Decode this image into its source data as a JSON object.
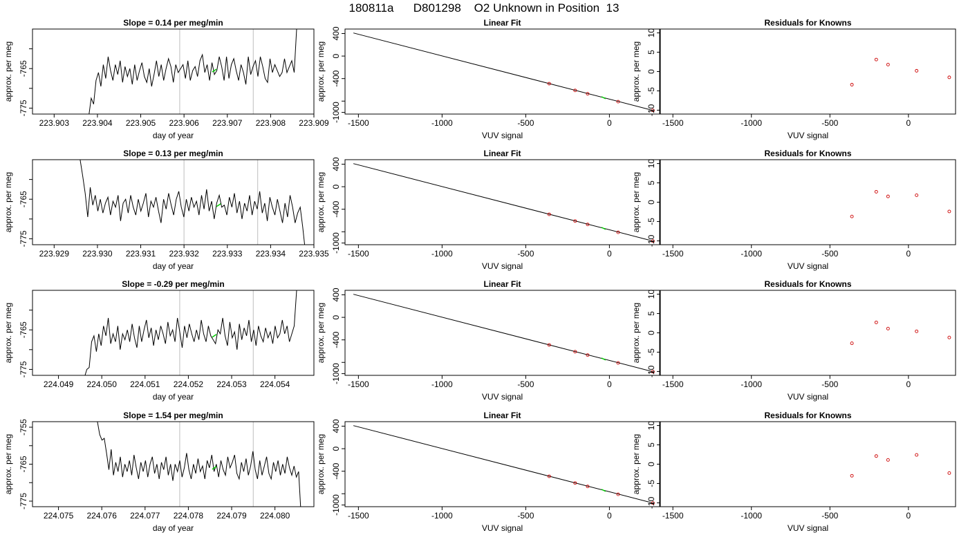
{
  "title": "180811a      D801298    O2 Unknown in Position  13",
  "colors": {
    "trace": "#000000",
    "marker_unknown": "#00cc00",
    "known_points": "#cc0000",
    "guide_lines": "#cccccc",
    "fit_line": "#000000"
  },
  "chart_data": [
    {
      "type": "line",
      "panel": "time-series-row-1",
      "title": "Slope =  0.14  per meg/min",
      "xlabel": "day of year",
      "ylabel": "approx. per meg",
      "xlim": [
        223.9025,
        223.909
      ],
      "ylim": [
        -776.5,
        -755.0
      ],
      "xticks": [
        223.903,
        223.904,
        223.905,
        223.906,
        223.907,
        223.908,
        223.909
      ],
      "xtick_labels": [
        "223.903",
        "223.904",
        "223.905",
        "223.906",
        "223.907",
        "223.908",
        "223.909"
      ],
      "yticks": [
        -775,
        -770,
        -765,
        -760
      ],
      "ytick_labels": [
        "-775",
        "",
        "-765",
        ""
      ],
      "vlines": [
        223.9059,
        223.9076
      ],
      "unknown_marker": {
        "x": 223.9067,
        "y": -765.5
      },
      "trace_x_range": [
        223.9038,
        223.9086
      ],
      "trace": [
        -777.0,
        -772.5,
        -774.0,
        -768.0,
        -766.0,
        -769.5,
        -764.0,
        -767.5,
        -762.0,
        -765.5,
        -768.0,
        -764.0,
        -766.5,
        -763.0,
        -768.5,
        -764.5,
        -767.0,
        -765.0,
        -769.0,
        -764.0,
        -768.0,
        -765.5,
        -763.5,
        -767.0,
        -768.5,
        -765.0,
        -769.5,
        -766.5,
        -763.0,
        -767.0,
        -764.0,
        -768.0,
        -765.0,
        -762.5,
        -764.5,
        -768.5,
        -764.0,
        -766.0,
        -765.0,
        -764.0,
        -767.5,
        -763.0,
        -768.0,
        -765.5,
        -764.5,
        -767.0,
        -763.0,
        -761.5,
        -766.0,
        -764.0,
        -768.0,
        -763.5,
        -766.5,
        -765.5,
        -762.0,
        -764.5,
        -768.0,
        -762.0,
        -767.5,
        -764.0,
        -762.5,
        -765.5,
        -768.0,
        -764.0,
        -766.0,
        -769.0,
        -762.0,
        -766.5,
        -764.5,
        -763.0,
        -767.0,
        -762.0,
        -764.5,
        -767.5,
        -768.5,
        -762.5,
        -766.0,
        -764.0,
        -765.5,
        -767.0,
        -766.0,
        -762.5,
        -766.0,
        -764.5,
        -763.0,
        -766.0,
        -755.0
      ]
    },
    {
      "type": "scatter",
      "panel": "linear-fit-row-1",
      "title": "Linear Fit",
      "xlabel": "VUV signal",
      "ylabel": "approx. per meg",
      "xlim": [
        -1580,
        300
      ],
      "ylim": [
        -1030,
        480
      ],
      "xticks": [
        -1500,
        -1000,
        -500,
        0
      ],
      "xtick_labels": [
        "-1500",
        "-1000",
        "-500",
        "0"
      ],
      "yticks": [
        -1000,
        -800,
        -400,
        0,
        400
      ],
      "ytick_labels": [
        "-1000",
        "",
        "-400",
        "0",
        "400"
      ],
      "fit_line": {
        "x": [
          -1530,
          260
        ],
        "y": [
          410,
          -965
        ]
      },
      "knowns": {
        "x": [
          -360,
          -205,
          -130,
          52,
          260
        ],
        "y": [
          -490,
          -610,
          -670,
          -810,
          -965
        ]
      },
      "unknown": {
        "x": -35,
        "y": -740
      }
    },
    {
      "type": "scatter",
      "panel": "residuals-row-1",
      "title": "Residuals for Knowns",
      "xlabel": "VUV signal",
      "ylabel": "approx. per meg",
      "xlim": [
        -1580,
        300
      ],
      "ylim": [
        -11,
        11
      ],
      "xticks": [
        -1500,
        -1000,
        -500,
        0
      ],
      "xtick_labels": [
        "-1500",
        "-1000",
        "-500",
        "0"
      ],
      "yticks": [
        -10,
        -5,
        0,
        5,
        10
      ],
      "ytick_labels": [
        "-10",
        "-5",
        "0",
        "5",
        "10"
      ],
      "knowns": {
        "x": [
          -360,
          -205,
          -130,
          52,
          260
        ],
        "y": [
          -3.4,
          3.1,
          1.8,
          0.2,
          -1.5
        ]
      }
    },
    {
      "type": "line",
      "panel": "time-series-row-2",
      "title": "Slope =  0.13  per meg/min",
      "xlabel": "day of year",
      "ylabel": "approx. per meg",
      "xlim": [
        223.9285,
        223.935
      ],
      "ylim": [
        -776.5,
        -755.0
      ],
      "xticks": [
        223.929,
        223.93,
        223.931,
        223.932,
        223.933,
        223.934,
        223.935
      ],
      "xtick_labels": [
        "223.929",
        "223.930",
        "223.931",
        "223.932",
        "223.933",
        "223.934",
        "223.935"
      ],
      "yticks": [
        -775,
        -770,
        -765,
        -760
      ],
      "ytick_labels": [
        "-775",
        "",
        "-765",
        ""
      ],
      "vlines": [
        223.932,
        223.9337
      ],
      "unknown_marker": {
        "x": 223.9328,
        "y": -766.5
      },
      "trace_x_range": [
        223.9296,
        223.9348
      ],
      "trace": [
        -755.0,
        -759.0,
        -763.5,
        -769.5,
        -762.0,
        -766.5,
        -764.0,
        -768.0,
        -765.0,
        -768.5,
        -766.0,
        -764.5,
        -769.0,
        -765.5,
        -767.0,
        -764.0,
        -770.5,
        -766.0,
        -765.0,
        -768.5,
        -764.0,
        -767.0,
        -769.0,
        -765.0,
        -768.0,
        -766.0,
        -763.5,
        -769.5,
        -765.5,
        -767.0,
        -764.5,
        -768.0,
        -771.0,
        -765.0,
        -767.5,
        -763.5,
        -766.5,
        -769.0,
        -765.0,
        -763.0,
        -767.0,
        -769.5,
        -765.0,
        -768.0,
        -764.5,
        -767.0,
        -765.5,
        -769.0,
        -764.0,
        -767.5,
        -762.5,
        -768.0,
        -765.5,
        -770.0,
        -766.0,
        -764.0,
        -767.0,
        -766.5,
        -769.0,
        -764.5,
        -767.0,
        -763.5,
        -768.5,
        -765.5,
        -770.0,
        -766.0,
        -768.0,
        -764.0,
        -769.0,
        -765.5,
        -767.5,
        -763.0,
        -768.5,
        -766.0,
        -770.5,
        -764.5,
        -767.0,
        -769.0,
        -765.0,
        -768.0,
        -771.0,
        -766.0,
        -769.5,
        -764.0,
        -767.0,
        -771.0,
        -768.5,
        -767.0,
        -772.0,
        -778.0
      ]
    },
    {
      "type": "scatter",
      "panel": "linear-fit-row-2",
      "title": "Linear Fit",
      "xlabel": "VUV signal",
      "ylabel": "approx. per meg",
      "xlim": [
        -1580,
        300
      ],
      "ylim": [
        -1030,
        480
      ],
      "xticks": [
        -1500,
        -1000,
        -500,
        0
      ],
      "xtick_labels": [
        "-1500",
        "-1000",
        "-500",
        "0"
      ],
      "yticks": [
        -1000,
        -800,
        -400,
        0,
        400
      ],
      "ytick_labels": [
        "-1000",
        "",
        "-400",
        "0",
        "400"
      ],
      "fit_line": {
        "x": [
          -1530,
          260
        ],
        "y": [
          410,
          -965
        ]
      },
      "knowns": {
        "x": [
          -360,
          -205,
          -130,
          52,
          260
        ],
        "y": [
          -490,
          -610,
          -670,
          -810,
          -965
        ]
      },
      "unknown": {
        "x": -35,
        "y": -740
      }
    },
    {
      "type": "scatter",
      "panel": "residuals-row-2",
      "title": "Residuals for Knowns",
      "xlabel": "VUV signal",
      "ylabel": "approx. per meg",
      "xlim": [
        -1580,
        300
      ],
      "ylim": [
        -11,
        11
      ],
      "xticks": [
        -1500,
        -1000,
        -500,
        0
      ],
      "xtick_labels": [
        "-1500",
        "-1000",
        "-500",
        "0"
      ],
      "yticks": [
        -10,
        -5,
        0,
        5,
        10
      ],
      "ytick_labels": [
        "-10",
        "-5",
        "0",
        "5",
        "10"
      ],
      "knowns": {
        "x": [
          -360,
          -205,
          -130,
          52,
          260
        ],
        "y": [
          -3.7,
          2.7,
          1.5,
          1.8,
          -2.4
        ]
      }
    },
    {
      "type": "line",
      "panel": "time-series-row-3",
      "title": "Slope =  -0.29  per meg/min",
      "xlabel": "day of year",
      "ylabel": "approx. per meg",
      "xlim": [
        224.0484,
        224.0549
      ],
      "ylim": [
        -776.5,
        -755.0
      ],
      "xticks": [
        224.049,
        224.05,
        224.051,
        224.052,
        224.053,
        224.054
      ],
      "xtick_labels": [
        "224.049",
        "224.050",
        "224.051",
        "224.052",
        "224.053",
        "224.054"
      ],
      "yticks": [
        -775,
        -770,
        -765,
        -760
      ],
      "ytick_labels": [
        "-775",
        "",
        "-765",
        ""
      ],
      "vlines": [
        224.0518,
        224.0535
      ],
      "unknown_marker": {
        "x": 224.0526,
        "y": -766.5
      },
      "trace_x_range": [
        224.0496,
        224.0545
      ],
      "trace": [
        -777.0,
        -775.0,
        -774.5,
        -768.0,
        -766.5,
        -770.5,
        -766.0,
        -769.0,
        -764.0,
        -766.5,
        -762.0,
        -768.5,
        -766.0,
        -768.0,
        -764.0,
        -770.0,
        -766.0,
        -767.5,
        -765.0,
        -768.0,
        -763.5,
        -767.0,
        -769.5,
        -764.0,
        -768.0,
        -765.0,
        -762.5,
        -767.0,
        -764.5,
        -769.0,
        -765.0,
        -767.5,
        -764.0,
        -766.0,
        -768.5,
        -763.0,
        -766.5,
        -765.0,
        -768.0,
        -762.0,
        -765.5,
        -769.5,
        -764.0,
        -767.0,
        -763.5,
        -766.0,
        -768.0,
        -765.0,
        -767.5,
        -762.5,
        -766.0,
        -768.0,
        -764.0,
        -766.5,
        -767.5,
        -768.5,
        -765.0,
        -766.0,
        -762.0,
        -766.5,
        -769.0,
        -763.0,
        -767.0,
        -765.5,
        -770.0,
        -763.5,
        -767.5,
        -764.5,
        -766.5,
        -762.5,
        -768.0,
        -765.0,
        -769.0,
        -764.0,
        -766.5,
        -768.0,
        -764.5,
        -767.0,
        -765.5,
        -768.5,
        -764.0,
        -767.0,
        -766.0,
        -762.5,
        -766.0,
        -764.0,
        -768.0,
        -766.0,
        -764.0,
        -755.0
      ]
    },
    {
      "type": "scatter",
      "panel": "linear-fit-row-3",
      "title": "Linear Fit",
      "xlabel": "VUV signal",
      "ylabel": "approx. per meg",
      "xlim": [
        -1580,
        300
      ],
      "ylim": [
        -1030,
        480
      ],
      "xticks": [
        -1500,
        -1000,
        -500,
        0
      ],
      "xtick_labels": [
        "-1500",
        "-1000",
        "-500",
        "0"
      ],
      "yticks": [
        -1000,
        -800,
        -400,
        0,
        400
      ],
      "ytick_labels": [
        "-1000",
        "",
        "-400",
        "0",
        "400"
      ],
      "fit_line": {
        "x": [
          -1530,
          260
        ],
        "y": [
          410,
          -965
        ]
      },
      "knowns": {
        "x": [
          -360,
          -205,
          -130,
          52,
          260
        ],
        "y": [
          -490,
          -610,
          -670,
          -810,
          -965
        ]
      },
      "unknown": {
        "x": -35,
        "y": -740
      }
    },
    {
      "type": "scatter",
      "panel": "residuals-row-3",
      "title": "Residuals for Knowns",
      "xlabel": "VUV signal",
      "ylabel": "approx. per meg",
      "xlim": [
        -1580,
        300
      ],
      "ylim": [
        -11,
        11
      ],
      "xticks": [
        -1500,
        -1000,
        -500,
        0
      ],
      "xtick_labels": [
        "-1500",
        "-1000",
        "-500",
        "0"
      ],
      "yticks": [
        -10,
        -5,
        0,
        5,
        10
      ],
      "ytick_labels": [
        "-10",
        "-5",
        "0",
        "5",
        "10"
      ],
      "knowns": {
        "x": [
          -360,
          -205,
          -130,
          52,
          260
        ],
        "y": [
          -2.7,
          2.7,
          1.1,
          0.4,
          -1.2
        ]
      }
    },
    {
      "type": "line",
      "panel": "time-series-row-4",
      "title": "Slope =  1.54  per meg/min",
      "xlabel": "day of year",
      "ylabel": "approx. per meg",
      "xlim": [
        224.0744,
        224.0809
      ],
      "ylim": [
        -776.5,
        -753.5
      ],
      "xticks": [
        224.075,
        224.076,
        224.077,
        224.078,
        224.079,
        224.08
      ],
      "xtick_labels": [
        "224.075",
        "224.076",
        "224.077",
        "224.078",
        "224.079",
        "224.080"
      ],
      "yticks": [
        -775,
        -770,
        -765,
        -760,
        -755
      ],
      "ytick_labels": [
        "-775",
        "",
        "-765",
        "",
        "-755"
      ],
      "vlines": [
        224.0778,
        224.0795
      ],
      "unknown_marker": {
        "x": 224.0786,
        "y": -766.0
      },
      "trace_x_range": [
        224.0759,
        224.0806
      ],
      "trace": [
        -753.5,
        -757.0,
        -758.5,
        -758.0,
        -762.0,
        -766.5,
        -761.0,
        -768.0,
        -764.5,
        -767.0,
        -763.0,
        -768.5,
        -765.0,
        -767.0,
        -764.0,
        -768.0,
        -762.5,
        -766.0,
        -769.0,
        -764.5,
        -767.0,
        -764.0,
        -768.5,
        -765.0,
        -763.0,
        -767.5,
        -765.0,
        -769.0,
        -764.5,
        -766.5,
        -763.0,
        -768.0,
        -765.0,
        -769.5,
        -765.0,
        -767.0,
        -764.0,
        -768.5,
        -766.0,
        -762.0,
        -766.5,
        -769.0,
        -765.0,
        -767.5,
        -763.5,
        -767.0,
        -765.5,
        -769.0,
        -764.0,
        -766.0,
        -762.5,
        -767.0,
        -765.0,
        -768.5,
        -764.0,
        -766.5,
        -768.0,
        -763.0,
        -766.0,
        -764.5,
        -762.5,
        -767.5,
        -769.0,
        -764.5,
        -767.0,
        -763.5,
        -768.0,
        -765.5,
        -761.5,
        -766.5,
        -769.0,
        -764.0,
        -768.0,
        -765.5,
        -763.0,
        -767.5,
        -769.0,
        -764.5,
        -767.0,
        -764.0,
        -768.0,
        -765.0,
        -767.5,
        -763.0,
        -766.0,
        -768.0,
        -765.5,
        -768.5,
        -767.0,
        -778.0
      ]
    },
    {
      "type": "scatter",
      "panel": "linear-fit-row-4",
      "title": "Linear Fit",
      "xlabel": "VUV signal",
      "ylabel": "approx. per meg",
      "xlim": [
        -1580,
        300
      ],
      "ylim": [
        -1030,
        480
      ],
      "xticks": [
        -1500,
        -1000,
        -500,
        0
      ],
      "xtick_labels": [
        "-1500",
        "-1000",
        "-500",
        "0"
      ],
      "yticks": [
        -1000,
        -800,
        -400,
        0,
        400
      ],
      "ytick_labels": [
        "-1000",
        "",
        "-400",
        "0",
        "400"
      ],
      "fit_line": {
        "x": [
          -1530,
          260
        ],
        "y": [
          410,
          -965
        ]
      },
      "knowns": {
        "x": [
          -360,
          -205,
          -130,
          52,
          260
        ],
        "y": [
          -490,
          -610,
          -670,
          -810,
          -965
        ]
      },
      "unknown": {
        "x": -35,
        "y": -740
      }
    },
    {
      "type": "scatter",
      "panel": "residuals-row-4",
      "title": "Residuals for Knowns",
      "xlabel": "VUV signal",
      "ylabel": "approx. per meg",
      "xlim": [
        -1580,
        300
      ],
      "ylim": [
        -11,
        11
      ],
      "xticks": [
        -1500,
        -1000,
        -500,
        0
      ],
      "xtick_labels": [
        "-1500",
        "-1000",
        "-500",
        "0"
      ],
      "yticks": [
        -10,
        -5,
        0,
        5,
        10
      ],
      "ytick_labels": [
        "-10",
        "-5",
        "0",
        "5",
        "10"
      ],
      "knowns": {
        "x": [
          -360,
          -205,
          -130,
          52,
          260
        ],
        "y": [
          -3.0,
          2.1,
          1.1,
          2.4,
          -2.3
        ]
      }
    }
  ]
}
